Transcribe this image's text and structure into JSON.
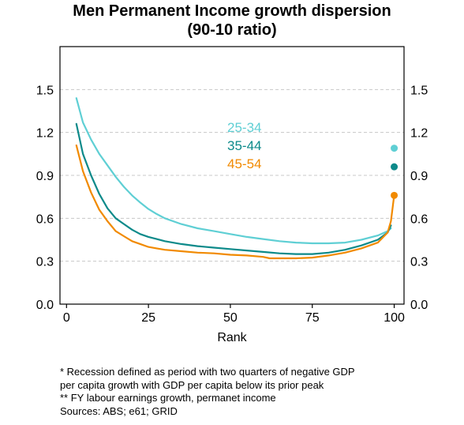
{
  "chart_data": {
    "type": "line",
    "title": [
      "Men Permanent Income growth dispersion",
      "(90-10 ratio)"
    ],
    "xlabel": "Rank",
    "ylabel": "",
    "xlim": [
      -2,
      103
    ],
    "ylim": [
      0,
      1.8
    ],
    "x_ticks": [
      0,
      25,
      50,
      75,
      100
    ],
    "y_ticks": [
      0.0,
      0.3,
      0.6,
      0.9,
      1.2,
      1.5
    ],
    "y_tick_labels": [
      "0.0",
      "0.3",
      "0.6",
      "0.9",
      "1.2",
      "1.5"
    ],
    "grid": "horizontal-dashed",
    "legend_position": "center-top",
    "series": [
      {
        "name": "25-34",
        "color": "#5fcfd4",
        "x": [
          3,
          5,
          7.5,
          10,
          12.5,
          15,
          17.5,
          20,
          22.5,
          25,
          27.5,
          30,
          35,
          40,
          45,
          50,
          55,
          60,
          65,
          70,
          75,
          80,
          85,
          90,
          95,
          98,
          99
        ],
        "y": [
          1.44,
          1.27,
          1.15,
          1.05,
          0.97,
          0.89,
          0.82,
          0.76,
          0.71,
          0.665,
          0.63,
          0.6,
          0.56,
          0.53,
          0.51,
          0.49,
          0.47,
          0.455,
          0.44,
          0.43,
          0.425,
          0.425,
          0.43,
          0.45,
          0.48,
          0.51,
          0.53
        ],
        "end_marker": {
          "x": 100,
          "y": 1.09
        }
      },
      {
        "name": "35-44",
        "color": "#0d8a8a",
        "x": [
          3,
          5,
          7.5,
          10,
          12.5,
          15,
          17.5,
          20,
          22.5,
          25,
          27.5,
          30,
          35,
          40,
          45,
          50,
          55,
          60,
          65,
          70,
          75,
          80,
          85,
          90,
          95,
          98,
          99
        ],
        "y": [
          1.26,
          1.05,
          0.9,
          0.77,
          0.67,
          0.6,
          0.56,
          0.52,
          0.49,
          0.47,
          0.455,
          0.44,
          0.42,
          0.405,
          0.395,
          0.385,
          0.375,
          0.365,
          0.355,
          0.35,
          0.35,
          0.36,
          0.38,
          0.41,
          0.45,
          0.5,
          0.55
        ],
        "end_marker": {
          "x": 100,
          "y": 0.96
        }
      },
      {
        "name": "45-54",
        "color": "#f18a00",
        "x": [
          3,
          5,
          7.5,
          10,
          12.5,
          15,
          17.5,
          20,
          22.5,
          25,
          27.5,
          30,
          35,
          40,
          45,
          50,
          55,
          60,
          62,
          65,
          70,
          75,
          80,
          85,
          90,
          95,
          98,
          99,
          100
        ],
        "y": [
          1.11,
          0.93,
          0.78,
          0.66,
          0.58,
          0.51,
          0.475,
          0.44,
          0.42,
          0.4,
          0.39,
          0.38,
          0.37,
          0.36,
          0.355,
          0.345,
          0.34,
          0.33,
          0.32,
          0.32,
          0.32,
          0.325,
          0.34,
          0.36,
          0.39,
          0.43,
          0.5,
          0.58,
          0.76
        ],
        "end_marker": {
          "x": 100,
          "y": 0.76
        }
      }
    ]
  },
  "notes": [
    "* Recession defined as period with two quarters of negative GDP",
    "per capita growth with GDP per capita below its prior peak",
    "** FY labour earnings growth, permanet income",
    "Sources: ABS; e61; GRID"
  ]
}
